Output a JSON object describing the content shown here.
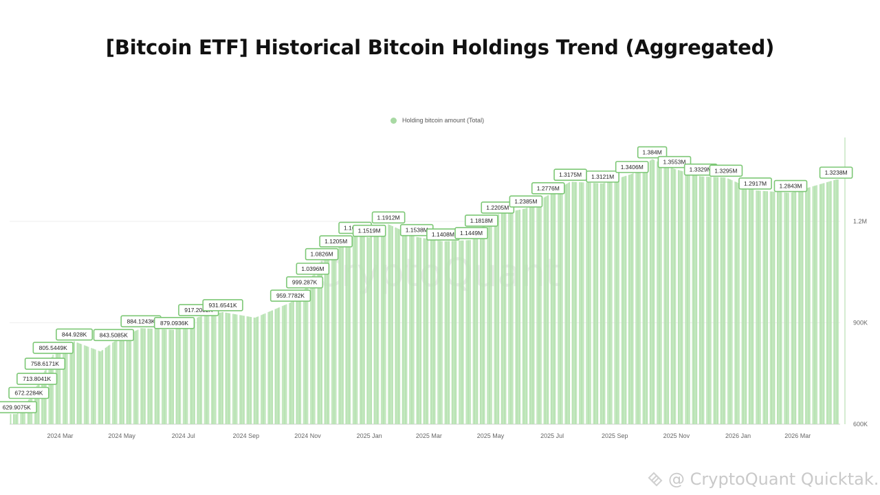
{
  "title": "[Bitcoin ETF] Historical Bitcoin Holdings Trend (Aggregated)",
  "footer_credit": "@ CryptoQuant Quicktak...",
  "watermark_text": "CryptoQuant",
  "chart_data": {
    "type": "bar",
    "legend": [
      "Holding bitcoin amount (Total)"
    ],
    "legend_position": "top-center",
    "grid": true,
    "bar_color": "#b7e2b2",
    "label_border_color": "#7cc775",
    "ylim": [
      600000,
      1420000
    ],
    "y_ticks": [
      {
        "value": 600000,
        "label": "600K"
      },
      {
        "value": 900000,
        "label": "900K"
      },
      {
        "value": 1200000,
        "label": "1.2M"
      }
    ],
    "x_ticks": [
      {
        "date": "2024-03-01",
        "label": "2024 Mar"
      },
      {
        "date": "2024-05-01",
        "label": "2024 May"
      },
      {
        "date": "2024-07-01",
        "label": "2024 Jul"
      },
      {
        "date": "2024-09-01",
        "label": "2024 Sep"
      },
      {
        "date": "2024-11-01",
        "label": "2024 Nov"
      },
      {
        "date": "2025-01-01",
        "label": "2025 Jan"
      },
      {
        "date": "2025-03-01",
        "label": "2025 Mar"
      },
      {
        "date": "2025-05-01",
        "label": "2025 May"
      },
      {
        "date": "2025-07-01",
        "label": "2025 Jul"
      },
      {
        "date": "2025-09-01",
        "label": "2025 Sep"
      },
      {
        "date": "2025-11-01",
        "label": "2025 Nov"
      },
      {
        "date": "2026-01-01",
        "label": "2026 Jan"
      },
      {
        "date": "2026-03-01",
        "label": "2026 Mar"
      }
    ],
    "x_range": [
      "2024-01-11",
      "2026-04-12"
    ],
    "points": [
      {
        "date": "2024-01-18",
        "value": 629907.5,
        "label": "629.9075K"
      },
      {
        "date": "2024-01-30",
        "value": 672228.4,
        "label": "672.2284K"
      },
      {
        "date": "2024-02-07",
        "value": 713804.1,
        "label": "713.8041K"
      },
      {
        "date": "2024-02-15",
        "value": 758617.1,
        "label": "758.6171K"
      },
      {
        "date": "2024-02-23",
        "value": 805544.9,
        "label": "805.5449K"
      },
      {
        "date": "2024-03-15",
        "value": 844928,
        "label": "844.928K"
      },
      {
        "date": "2024-04-10",
        "value": 815000
      },
      {
        "date": "2024-04-23",
        "value": 843508.5,
        "label": "843.5085K"
      },
      {
        "date": "2024-05-20",
        "value": 884124.3,
        "label": "884.1243K"
      },
      {
        "date": "2024-06-22",
        "value": 879093.6,
        "label": "879.0936K"
      },
      {
        "date": "2024-07-16",
        "value": 917200.2,
        "label": "917.2002K"
      },
      {
        "date": "2024-08-09",
        "value": 931654.1,
        "label": "931.6541K"
      },
      {
        "date": "2024-09-10",
        "value": 915000
      },
      {
        "date": "2024-10-15",
        "value": 959778.2,
        "label": "959.7782K"
      },
      {
        "date": "2024-10-29",
        "value": 999287,
        "label": "999.287K"
      },
      {
        "date": "2024-11-06",
        "value": 1039600,
        "label": "1.0396M"
      },
      {
        "date": "2024-11-15",
        "value": 1082600,
        "label": "1.0826M"
      },
      {
        "date": "2024-11-29",
        "value": 1120500,
        "label": "1.1205M"
      },
      {
        "date": "2024-12-18",
        "value": 1160400,
        "label": "1.1604M"
      },
      {
        "date": "2025-01-01",
        "value": 1151900,
        "label": "1.1519M"
      },
      {
        "date": "2025-01-20",
        "value": 1191200,
        "label": "1.1912M"
      },
      {
        "date": "2025-02-17",
        "value": 1153800,
        "label": "1.1538M"
      },
      {
        "date": "2025-03-15",
        "value": 1140800,
        "label": "1.1408M"
      },
      {
        "date": "2025-04-12",
        "value": 1144900,
        "label": "1.1449M"
      },
      {
        "date": "2025-04-22",
        "value": 1181800,
        "label": "1.1818M"
      },
      {
        "date": "2025-05-08",
        "value": 1220500,
        "label": "1.2205M"
      },
      {
        "date": "2025-06-05",
        "value": 1238500,
        "label": "1.2385M"
      },
      {
        "date": "2025-06-27",
        "value": 1277600,
        "label": "1.2776M"
      },
      {
        "date": "2025-07-19",
        "value": 1317500,
        "label": "1.3175M"
      },
      {
        "date": "2025-08-20",
        "value": 1312100,
        "label": "1.3121M"
      },
      {
        "date": "2025-09-18",
        "value": 1340600,
        "label": "1.3406M"
      },
      {
        "date": "2025-10-08",
        "value": 1384000,
        "label": "1.384M"
      },
      {
        "date": "2025-10-30",
        "value": 1355300,
        "label": "1.3553M"
      },
      {
        "date": "2025-11-25",
        "value": 1332900,
        "label": "1.3329M"
      },
      {
        "date": "2025-12-20",
        "value": 1329500,
        "label": "1.3295M"
      },
      {
        "date": "2026-01-18",
        "value": 1291700,
        "label": "1.2917M"
      },
      {
        "date": "2026-02-22",
        "value": 1284300,
        "label": "1.2843M"
      },
      {
        "date": "2026-04-08",
        "value": 1323800,
        "label": "1.3238M"
      }
    ]
  }
}
